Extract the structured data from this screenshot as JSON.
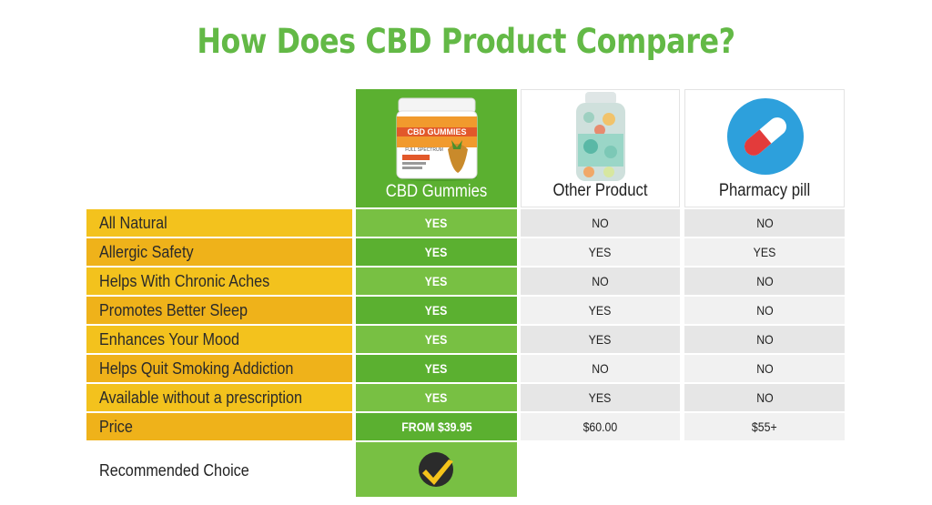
{
  "title": "How Does CBD Product Compare?",
  "columns": [
    {
      "label": "CBD Gummies"
    },
    {
      "label": "Other Product"
    },
    {
      "label": "Pharmacy pill"
    }
  ],
  "rows": [
    {
      "label": "All Natural",
      "cbd": "YES",
      "other": "NO",
      "pill": "NO"
    },
    {
      "label": "Allergic Safety",
      "cbd": "YES",
      "other": "YES",
      "pill": "YES"
    },
    {
      "label": "Helps With Chronic Aches",
      "cbd": "YES",
      "other": "NO",
      "pill": "NO"
    },
    {
      "label": "Promotes Better Sleep",
      "cbd": "YES",
      "other": "YES",
      "pill": "NO"
    },
    {
      "label": "Enhances Your Mood",
      "cbd": "YES",
      "other": "YES",
      "pill": "NO"
    },
    {
      "label": "Helps Quit Smoking Addiction",
      "cbd": "YES",
      "other": "NO",
      "pill": "NO"
    },
    {
      "label": "Available without a prescription",
      "cbd": "YES",
      "other": "YES",
      "pill": "NO"
    },
    {
      "label": "Price",
      "cbd": "FROM $39.95",
      "other": "$60.00",
      "pill": "$55+"
    }
  ],
  "recommended": {
    "label": "Recommended Choice",
    "icon": "checkmark-icon"
  },
  "product_images": {
    "cbd": "cbd-gummies-jar-image",
    "other": "other-product-bottle-image",
    "pill": "pill-icon"
  },
  "jar_label": {
    "title": "CBD GUMMIES",
    "subtitle": "FULL SPECTRUM"
  },
  "colors": {
    "title_green": "#63b946",
    "cbd_dark": "#5bb030",
    "cbd_light": "#78c043",
    "label_yellow_a": "#f3c21d",
    "label_yellow_b": "#efb21a",
    "gray_a": "#e6e6e6",
    "gray_b": "#f1f1f1",
    "pill_circle": "#2da0dc",
    "pill_red": "#e33b3b"
  }
}
